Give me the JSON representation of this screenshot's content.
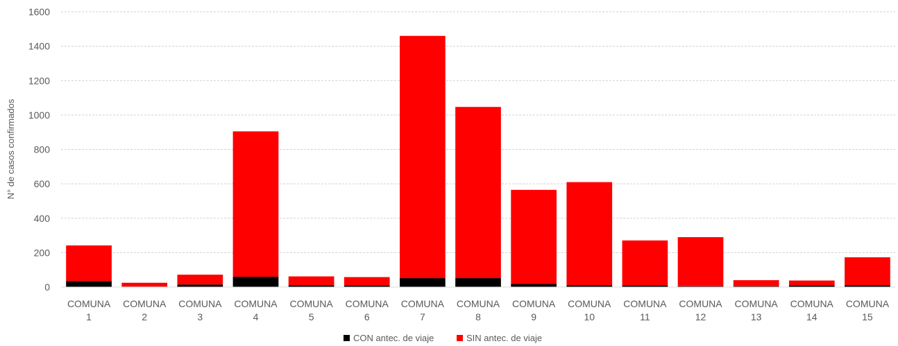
{
  "chart_data": {
    "type": "bar",
    "stacked": true,
    "ylabel": "N° de casos confirmados",
    "ylim": [
      0,
      1600
    ],
    "yticks": [
      0,
      200,
      400,
      600,
      800,
      1000,
      1200,
      1400,
      1600
    ],
    "grid": true,
    "legend_position": "bottom",
    "categories": [
      [
        "COMUNA",
        "1"
      ],
      [
        "COMUNA",
        "2"
      ],
      [
        "COMUNA",
        "3"
      ],
      [
        "COMUNA",
        "4"
      ],
      [
        "COMUNA",
        "5"
      ],
      [
        "COMUNA",
        "6"
      ],
      [
        "COMUNA",
        "7"
      ],
      [
        "COMUNA",
        "8"
      ],
      [
        "COMUNA",
        "9"
      ],
      [
        "COMUNA",
        "10"
      ],
      [
        "COMUNA",
        "11"
      ],
      [
        "COMUNA",
        "12"
      ],
      [
        "COMUNA",
        "13"
      ],
      [
        "COMUNA",
        "14"
      ],
      [
        "COMUNA",
        "15"
      ]
    ],
    "series": [
      {
        "name": "CON antec. de viaje",
        "color": "#000000",
        "values": [
          35,
          3,
          15,
          60,
          10,
          8,
          52,
          52,
          18,
          10,
          8,
          5,
          5,
          8,
          10
        ]
      },
      {
        "name": "SIN antec. de viaje",
        "color": "#ff0000",
        "values": [
          207,
          22,
          57,
          845,
          52,
          50,
          1408,
          995,
          547,
          600,
          263,
          285,
          35,
          30,
          163
        ]
      }
    ]
  }
}
